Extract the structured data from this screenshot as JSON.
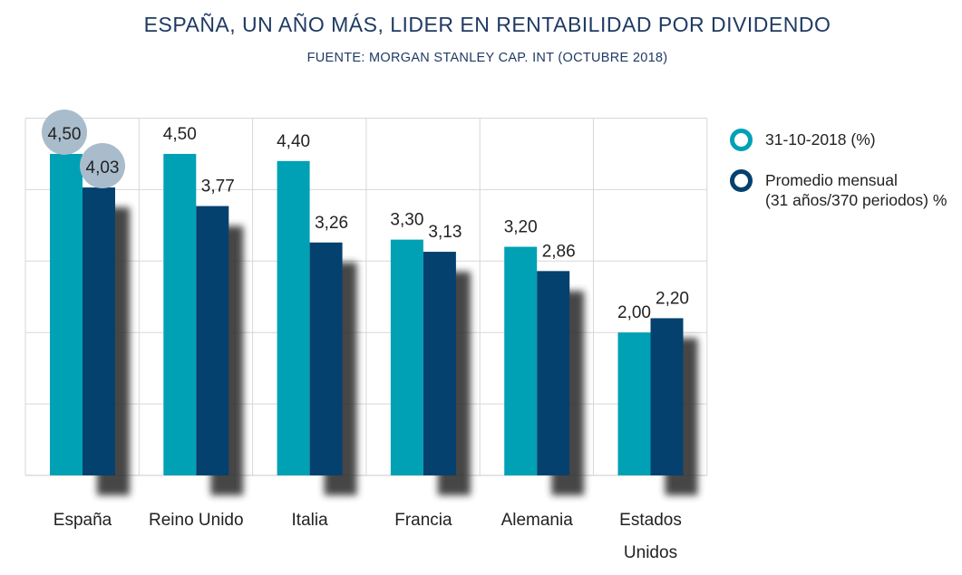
{
  "chart_data": {
    "type": "bar",
    "title": "ESPAÑA, UN AÑO MÁS, LIDER EN RENTABILIDAD POR DIVIDENDO",
    "subtitle": "FUENTE: MORGAN STANLEY CAP. INT (OCTUBRE 2018)",
    "categories": [
      "España",
      "Reino Unido",
      "Italia",
      "Francia",
      "Alemania",
      "Estados Unidos"
    ],
    "series": [
      {
        "name": "31-10-2018 (%)",
        "color": "#00a1b5",
        "values": [
          4.5,
          4.5,
          4.4,
          3.3,
          3.2,
          2.0
        ],
        "labels": [
          "4,50",
          "4,50",
          "4,40",
          "3,30",
          "3,20",
          "2,00"
        ]
      },
      {
        "name": "Promedio mensual (31 años/370 periodos) %",
        "color": "#05416f",
        "values": [
          4.03,
          3.77,
          3.26,
          3.13,
          2.86,
          2.2
        ],
        "labels": [
          "4,03",
          "3,77",
          "3,26",
          "3,13",
          "2,86",
          "2,20"
        ]
      }
    ],
    "highlighted_category": "España",
    "ylim": [
      0,
      5
    ],
    "grid": true,
    "legend": "right",
    "xlabel": "",
    "ylabel": ""
  },
  "legend": {
    "item1": "31-10-2018 (%)",
    "item2_line1": "Promedio mensual",
    "item2_line2": "(31 años/370 periodos) %"
  },
  "colors": {
    "series1": "#00a1b5",
    "series2": "#05416f",
    "shadow": "#333333",
    "highlight_circle": "#a9bccc",
    "grid": "#d7d7d7"
  }
}
